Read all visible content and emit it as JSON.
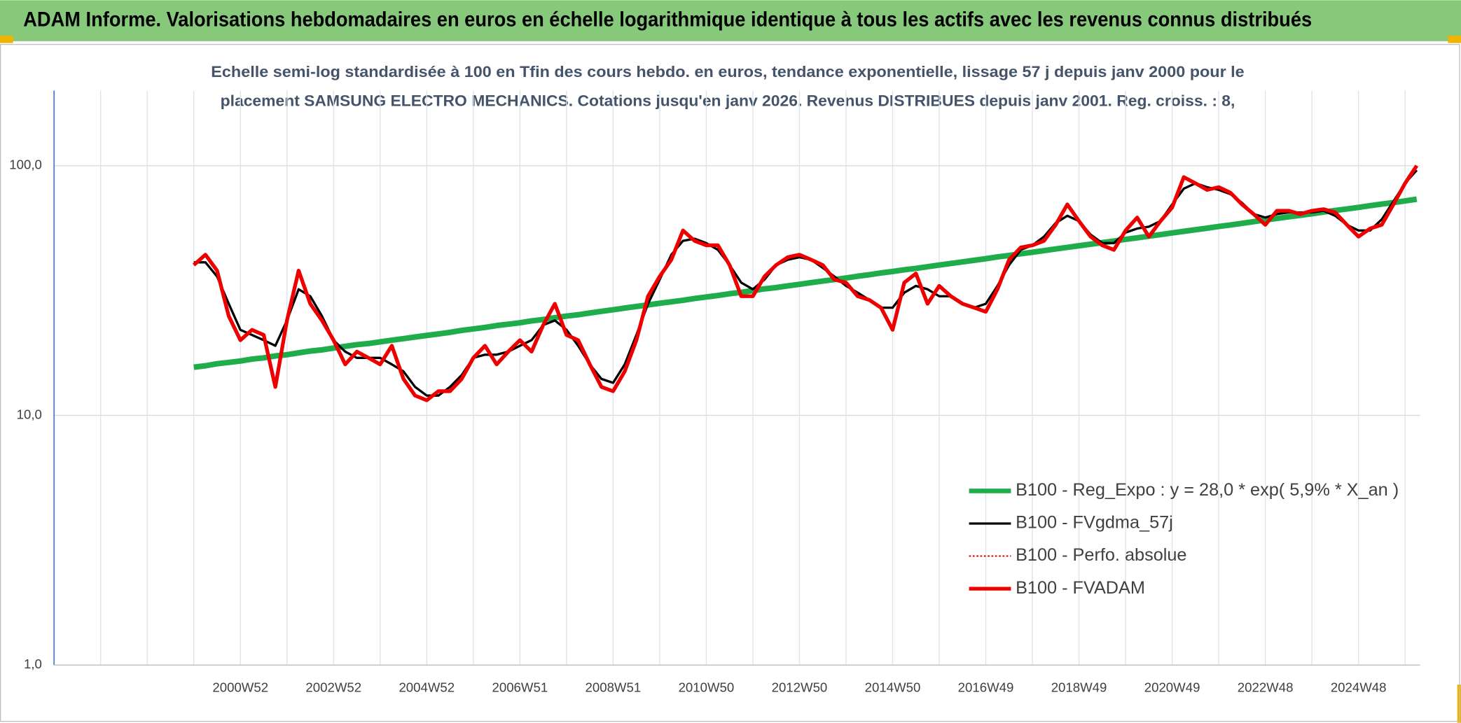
{
  "chart_data": {
    "type": "line",
    "title": "ADAM Informe. Valorisations hebdomadaires en euros en échelle logarithmique identique à tous les actifs avec les revenus connus distribués",
    "subtitle": [
      "Echelle semi-log standardisée à 100 en Tfin des cours hebdo. en euros, tendance exponentielle, lissage 57 j depuis janv 2000 pour le",
      "placement SAMSUNG ELECTRO MECHANICS. Cotations jusqu'en janv 2026. Revenus DISTRIBUES depuis janv 2001. Reg. croiss. : 8,"
    ],
    "yscale": "log",
    "ylim": [
      1,
      200
    ],
    "yticks": [
      {
        "value": 1,
        "label": "1,0"
      },
      {
        "value": 10,
        "label": "10,0"
      },
      {
        "value": 100,
        "label": "100,0"
      }
    ],
    "grid": true,
    "legend": "lower right",
    "categories": [
      null,
      null,
      null,
      null,
      null,
      null,
      null,
      null,
      null,
      null,
      null,
      null,
      null,
      null,
      null,
      null,
      "2000W52",
      null,
      null,
      null,
      null,
      null,
      null,
      null,
      "2002W52",
      null,
      null,
      null,
      null,
      null,
      null,
      null,
      "2004W52",
      null,
      null,
      null,
      null,
      null,
      null,
      null,
      "2006W51",
      null,
      null,
      null,
      null,
      null,
      null,
      null,
      "2008W51",
      null,
      null,
      null,
      null,
      null,
      null,
      null,
      "2010W50",
      null,
      null,
      null,
      null,
      null,
      null,
      null,
      "2012W50",
      null,
      null,
      null,
      null,
      null,
      null,
      null,
      "2014W50",
      null,
      null,
      null,
      null,
      null,
      null,
      null,
      "2016W49",
      null,
      null,
      null,
      null,
      null,
      null,
      null,
      "2018W49",
      null,
      null,
      null,
      null,
      null,
      null,
      null,
      "2020W49",
      null,
      null,
      null,
      null,
      null,
      null,
      null,
      "2022W48",
      null,
      null,
      null,
      null,
      null,
      null,
      null,
      "2024W48",
      null,
      null,
      null,
      null,
      null
    ],
    "series": [
      {
        "name": "B100 - Reg_Expo : y = 28,0 * exp( 5,9% *  X_an )",
        "color": "#1fad4b",
        "width": 6,
        "dash": "none",
        "values": [
          null,
          null,
          null,
          null,
          null,
          null,
          null,
          null,
          null,
          null,
          null,
          null,
          15.6,
          15.8,
          16.1,
          16.3,
          16.5,
          16.8,
          17.0,
          17.3,
          17.5,
          17.8,
          18.1,
          18.3,
          18.6,
          18.9,
          19.2,
          19.4,
          19.7,
          20.0,
          20.3,
          20.6,
          20.9,
          21.2,
          21.5,
          21.9,
          22.2,
          22.5,
          22.9,
          23.2,
          23.5,
          23.9,
          24.2,
          24.6,
          25.0,
          25.3,
          25.7,
          26.1,
          26.5,
          26.9,
          27.3,
          27.7,
          28.1,
          28.5,
          28.9,
          29.4,
          29.8,
          30.2,
          30.7,
          31.1,
          31.6,
          32.1,
          32.5,
          33.0,
          33.5,
          34.0,
          34.5,
          35.0,
          35.5,
          36.1,
          36.6,
          37.2,
          37.7,
          38.3,
          38.8,
          39.4,
          40.0,
          40.6,
          41.2,
          41.8,
          42.4,
          43.1,
          43.7,
          44.4,
          45.0,
          45.7,
          46.4,
          47.1,
          47.8,
          48.5,
          49.2,
          49.9,
          50.7,
          51.4,
          52.2,
          53.0,
          53.8,
          54.6,
          55.4,
          56.2,
          57.1,
          57.9,
          58.8,
          59.7,
          60.6,
          61.5,
          62.4,
          63.3,
          64.2,
          65.2,
          66.2,
          67.1,
          68.1,
          69.2,
          70.2,
          71.2,
          72.3,
          73.4
        ]
      },
      {
        "name": "B100 - FVgdma_57j",
        "color": "#000000",
        "width": 2.5,
        "dash": "none",
        "values": [
          null,
          null,
          null,
          null,
          null,
          null,
          null,
          null,
          null,
          null,
          null,
          null,
          41,
          41,
          36,
          28,
          22,
          21,
          20,
          19,
          24,
          32,
          30,
          25,
          20,
          18,
          17,
          17,
          17,
          16,
          15,
          13,
          12,
          12,
          13,
          14.5,
          17,
          17.5,
          17.5,
          18,
          19,
          20,
          23,
          24,
          22,
          19,
          16,
          14,
          13.5,
          16,
          21,
          28,
          35,
          44,
          50,
          51,
          49,
          46,
          40,
          34,
          32,
          35,
          40,
          42,
          43,
          42,
          39,
          36,
          33,
          31,
          29,
          27,
          27,
          31,
          33,
          32,
          30,
          30,
          28,
          27,
          28,
          33,
          40,
          46,
          48,
          52,
          59,
          63,
          60,
          53,
          49,
          49,
          54,
          56,
          57,
          60,
          70,
          81,
          85,
          82,
          80,
          77,
          71,
          64,
          62,
          64,
          65,
          65,
          65,
          66,
          63,
          58,
          55,
          55,
          61,
          72,
          85,
          96
        ]
      },
      {
        "name": "B100 - Perfo. absolue",
        "color": "#e00000",
        "width": 1.5,
        "dash": "2 2",
        "values": [
          null,
          null,
          null,
          null,
          null,
          null,
          null,
          null,
          null,
          null,
          null,
          null,
          40,
          44,
          38,
          25,
          20,
          22,
          21,
          13,
          24,
          38,
          28,
          24,
          20,
          16,
          18,
          17,
          16,
          19,
          14,
          12,
          11.5,
          12.5,
          12.5,
          14,
          17,
          19,
          16,
          18,
          20,
          18,
          23,
          28,
          21,
          20,
          16,
          13,
          12.5,
          15,
          20,
          30,
          36,
          42,
          55,
          50,
          48,
          48,
          40,
          30,
          30,
          36,
          40,
          43,
          44,
          42,
          40,
          35,
          34,
          30,
          29,
          27,
          22,
          34,
          37,
          28,
          33,
          30,
          28,
          27,
          26,
          32,
          42,
          47,
          48,
          50,
          58,
          70,
          60,
          52,
          48,
          46,
          55,
          62,
          52,
          60,
          68,
          90,
          85,
          80,
          82,
          78,
          70,
          64,
          58,
          66,
          66,
          64,
          66,
          67,
          65,
          58,
          52,
          56,
          58,
          70,
          85,
          100
        ]
      },
      {
        "name": "B100 - FVADAM",
        "color": "#ee0000",
        "width": 4,
        "dash": "none",
        "values": [
          null,
          null,
          null,
          null,
          null,
          null,
          null,
          null,
          null,
          null,
          null,
          null,
          40,
          44,
          38,
          25,
          20,
          22,
          21,
          13,
          24,
          38,
          28,
          24,
          20,
          16,
          18,
          17,
          16,
          19,
          14,
          12,
          11.5,
          12.5,
          12.5,
          14,
          17,
          19,
          16,
          18,
          20,
          18,
          23,
          28,
          21,
          20,
          16,
          13,
          12.5,
          15,
          20,
          30,
          36,
          42,
          55,
          50,
          48,
          48,
          40,
          30,
          30,
          36,
          40,
          43,
          44,
          42,
          40,
          35,
          34,
          30,
          29,
          27,
          22,
          34,
          37,
          28,
          33,
          30,
          28,
          27,
          26,
          32,
          42,
          47,
          48,
          50,
          58,
          70,
          60,
          52,
          48,
          46,
          55,
          62,
          52,
          60,
          68,
          90,
          85,
          80,
          82,
          78,
          70,
          64,
          58,
          66,
          66,
          64,
          66,
          67,
          65,
          58,
          52,
          56,
          58,
          70,
          85,
          100
        ]
      }
    ]
  }
}
